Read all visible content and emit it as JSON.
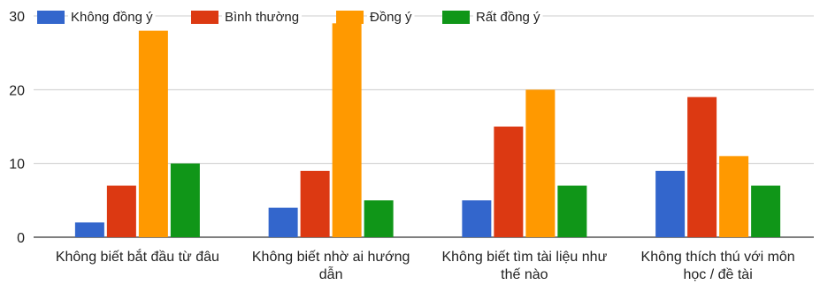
{
  "chart_data": {
    "type": "bar",
    "title": "",
    "xlabel": "",
    "ylabel": "",
    "ylim": [
      0,
      30
    ],
    "yticks": [
      0,
      10,
      20,
      30
    ],
    "grid": true,
    "legend_position": "top",
    "categories": [
      [
        "Không biết bắt đầu từ đâu"
      ],
      [
        "Không biết nhờ ai hướng",
        "dẫn"
      ],
      [
        "Không biết tìm tài liệu như",
        "thế nào"
      ],
      [
        "Không thích thú với môn",
        "học / đề tài"
      ]
    ],
    "series": [
      {
        "name": "Không đồng ý",
        "color": "#3366cc",
        "values": [
          2,
          4,
          5,
          9
        ]
      },
      {
        "name": "Bình thường",
        "color": "#dc3912",
        "values": [
          7,
          9,
          15,
          19
        ]
      },
      {
        "name": "Đồng ý",
        "color": "#ff9900",
        "values": [
          28,
          29,
          20,
          11
        ]
      },
      {
        "name": "Rất đồng ý",
        "color": "#109618",
        "values": [
          10,
          5,
          7,
          7
        ]
      }
    ]
  }
}
